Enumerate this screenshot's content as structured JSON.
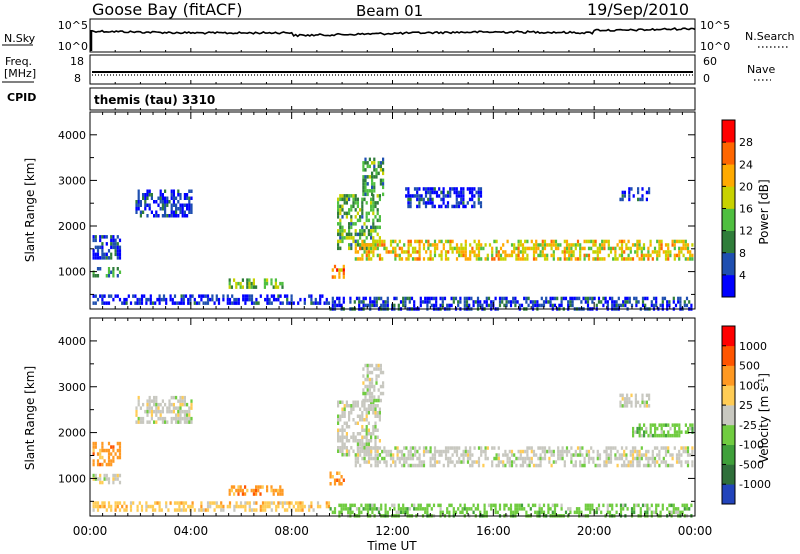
{
  "header": {
    "station": "Goose Bay (fitACF)",
    "beam": "Beam 01",
    "date": "19/Sep/2010"
  },
  "noise_panel": {
    "left_label": "N.Sky",
    "right_label": "N.Search",
    "left_ticks": [
      "10^5",
      "10^0"
    ],
    "right_ticks": [
      "10^5",
      "10^0"
    ]
  },
  "freq_panel": {
    "left_label_line1": "Freq.",
    "left_label_line2": "[MHz]",
    "left_ticks": [
      "18",
      "8"
    ],
    "right_label": "Nave",
    "right_ticks": [
      "60",
      "0"
    ],
    "cpid_label": "CPID"
  },
  "cpid_panel": {
    "text": "themis (tau) 3310"
  },
  "x_axis": {
    "label": "Time UT",
    "ticks": [
      "00:00",
      "04:00",
      "08:00",
      "12:00",
      "16:00",
      "20:00",
      "00:00"
    ]
  },
  "chart_data": [
    {
      "type": "heatmap",
      "name": "power",
      "ylabel": "Slant Range [km]",
      "yticks": [
        1000,
        2000,
        3000,
        4000
      ],
      "ylim": [
        180,
        4500
      ],
      "xlim_hours": [
        0,
        24
      ],
      "colorbar": {
        "label": "Power [dB]",
        "ticks": [
          "28",
          "24",
          "20",
          "16",
          "12",
          "8",
          "4"
        ],
        "colors": [
          "#0000ff",
          "#1f4fb0",
          "#2f7d3a",
          "#4fbf40",
          "#c8d200",
          "#ffaa00",
          "#ff6600",
          "#ff0000"
        ]
      },
      "regions": [
        {
          "t": [
            0.1,
            1.2
          ],
          "r": [
            900,
            1100
          ],
          "level": 0.35
        },
        {
          "t": [
            0.1,
            1.2
          ],
          "r": [
            1300,
            1800
          ],
          "level": 0.15
        },
        {
          "t": [
            1.8,
            4.0
          ],
          "r": [
            2200,
            2800
          ],
          "level": 0.12
        },
        {
          "t": [
            5.5,
            7.6
          ],
          "r": [
            650,
            850
          ],
          "level": 0.45
        },
        {
          "t": [
            0.1,
            9.5
          ],
          "r": [
            300,
            500
          ],
          "level": 0.1
        },
        {
          "t": [
            9.5,
            10.1
          ],
          "r": [
            900,
            1150
          ],
          "level": 0.75
        },
        {
          "t": [
            9.8,
            11.5
          ],
          "r": [
            1500,
            2700
          ],
          "level": 0.4
        },
        {
          "t": [
            10.8,
            11.6
          ],
          "r": [
            2700,
            3500
          ],
          "level": 0.35
        },
        {
          "t": [
            10.5,
            23.9
          ],
          "r": [
            1250,
            1700
          ],
          "level": 0.6
        },
        {
          "t": [
            12.5,
            15.5
          ],
          "r": [
            2400,
            2850
          ],
          "level": 0.1
        },
        {
          "t": [
            21.0,
            22.2
          ],
          "r": [
            2600,
            2850
          ],
          "level": 0.15
        },
        {
          "t": [
            9.5,
            23.9
          ],
          "r": [
            200,
            450
          ],
          "level": 0.15
        }
      ]
    },
    {
      "type": "heatmap",
      "name": "velocity",
      "ylabel": "Slant Range [km]",
      "yticks": [
        1000,
        2000,
        3000,
        4000
      ],
      "ylim": [
        180,
        4500
      ],
      "xlim_hours": [
        0,
        24
      ],
      "colorbar": {
        "label": "Velocity [m s^-1]",
        "ticks": [
          "1000",
          "500",
          "100",
          "25",
          "-25",
          "-100",
          "-500",
          "-1000"
        ],
        "colors": [
          "#2244bb",
          "#2f6f3a",
          "#3fa03a",
          "#70cc40",
          "#c8c8c0",
          "#ffcc55",
          "#ff9922",
          "#ff5500",
          "#ff0000"
        ]
      },
      "regions": [
        {
          "t": [
            0.1,
            1.2
          ],
          "r": [
            900,
            1100
          ],
          "class": "gray"
        },
        {
          "t": [
            0.1,
            1.2
          ],
          "r": [
            1300,
            1800
          ],
          "class": "orange"
        },
        {
          "t": [
            1.8,
            4.0
          ],
          "r": [
            2200,
            2800
          ],
          "class": "gray"
        },
        {
          "t": [
            5.5,
            7.6
          ],
          "r": [
            650,
            850
          ],
          "class": "orange"
        },
        {
          "t": [
            0.1,
            9.5
          ],
          "r": [
            300,
            500
          ],
          "class": "yellow"
        },
        {
          "t": [
            9.5,
            10.1
          ],
          "r": [
            900,
            1150
          ],
          "class": "orange"
        },
        {
          "t": [
            9.8,
            11.5
          ],
          "r": [
            1500,
            2700
          ],
          "class": "gray"
        },
        {
          "t": [
            10.8,
            11.6
          ],
          "r": [
            2700,
            3500
          ],
          "class": "gray"
        },
        {
          "t": [
            10.5,
            23.9
          ],
          "r": [
            1250,
            1700
          ],
          "class": "gray"
        },
        {
          "t": [
            21.0,
            22.2
          ],
          "r": [
            2600,
            2850
          ],
          "class": "gray"
        },
        {
          "t": [
            21.5,
            23.9
          ],
          "r": [
            1900,
            2200
          ],
          "class": "green"
        },
        {
          "t": [
            9.5,
            23.9
          ],
          "r": [
            200,
            450
          ],
          "class": "green"
        }
      ]
    }
  ]
}
